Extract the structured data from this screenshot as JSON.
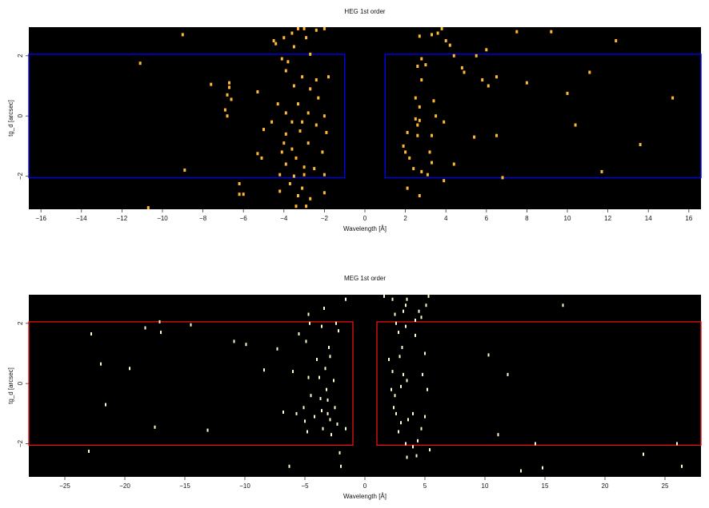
{
  "chart_data": [
    {
      "type": "scatter",
      "title": "HEG 1st order",
      "xlabel": "Wavelength [Å]",
      "ylabel": "tg_d [arcsec]",
      "xlim": [
        -16.6,
        16.6
      ],
      "ylim": [
        -3.1,
        2.95
      ],
      "xticks": [
        -16,
        -14,
        -12,
        -10,
        -8,
        -6,
        -4,
        -2,
        0,
        2,
        4,
        6,
        8,
        10,
        12,
        14,
        16
      ],
      "yticks": [
        -2,
        0,
        2
      ],
      "background": "#000000",
      "point_color": "#ffb833",
      "region_color": "#0000ff",
      "grid": false,
      "regions": [
        {
          "x": [
            -16.6,
            -1.0
          ],
          "y": [
            -2.05,
            2.05
          ]
        },
        {
          "x": [
            1.0,
            16.6
          ],
          "y": [
            -2.05,
            2.05
          ]
        }
      ],
      "points": [
        [
          -9.0,
          2.7
        ],
        [
          -11.1,
          1.75
        ],
        [
          -7.6,
          1.05
        ],
        [
          -6.7,
          1.1
        ],
        [
          -6.7,
          0.95
        ],
        [
          -6.8,
          0.7
        ],
        [
          -6.6,
          0.55
        ],
        [
          -5.3,
          0.8
        ],
        [
          -6.8,
          0.0
        ],
        [
          -6.9,
          0.2
        ],
        [
          -5.3,
          -1.25
        ],
        [
          -5.1,
          -1.4
        ],
        [
          -8.9,
          -1.8
        ],
        [
          -6.2,
          -2.25
        ],
        [
          -6.2,
          -2.6
        ],
        [
          -6.0,
          -2.6
        ],
        [
          -10.7,
          -3.05
        ],
        [
          -4.5,
          2.5
        ],
        [
          -4.4,
          2.4
        ],
        [
          -4.0,
          2.6
        ],
        [
          -3.6,
          2.75
        ],
        [
          -3.3,
          2.9
        ],
        [
          -3.0,
          2.9
        ],
        [
          -2.9,
          2.6
        ],
        [
          -2.4,
          2.85
        ],
        [
          -2.0,
          2.9
        ],
        [
          -3.5,
          2.3
        ],
        [
          -3.8,
          1.8
        ],
        [
          -4.1,
          1.9
        ],
        [
          -2.7,
          2.05
        ],
        [
          -3.9,
          1.5
        ],
        [
          -3.1,
          1.3
        ],
        [
          -2.4,
          1.2
        ],
        [
          -1.8,
          1.3
        ],
        [
          -3.5,
          1.0
        ],
        [
          -2.7,
          0.9
        ],
        [
          -2.3,
          0.6
        ],
        [
          -4.3,
          0.4
        ],
        [
          -3.3,
          0.4
        ],
        [
          -3.9,
          0.1
        ],
        [
          -2.8,
          0.1
        ],
        [
          -2.0,
          0.0
        ],
        [
          -4.6,
          -0.2
        ],
        [
          -3.6,
          -0.2
        ],
        [
          -3.1,
          -0.2
        ],
        [
          -2.4,
          -0.3
        ],
        [
          -5.0,
          -0.45
        ],
        [
          -3.9,
          -0.6
        ],
        [
          -3.2,
          -0.5
        ],
        [
          -1.9,
          -0.55
        ],
        [
          -4.0,
          -0.9
        ],
        [
          -3.6,
          -1.1
        ],
        [
          -2.8,
          -0.9
        ],
        [
          -2.1,
          -1.2
        ],
        [
          -4.1,
          -1.2
        ],
        [
          -3.4,
          -1.4
        ],
        [
          -3.9,
          -1.6
        ],
        [
          -3.0,
          -1.7
        ],
        [
          -2.5,
          -1.75
        ],
        [
          -4.2,
          -1.95
        ],
        [
          -3.5,
          -2.0
        ],
        [
          -3.0,
          -1.95
        ],
        [
          -2.0,
          -1.95
        ],
        [
          -3.7,
          -2.25
        ],
        [
          -3.1,
          -2.4
        ],
        [
          -4.2,
          -2.5
        ],
        [
          -3.3,
          -2.65
        ],
        [
          -2.7,
          -2.75
        ],
        [
          -2.0,
          -2.55
        ],
        [
          -3.4,
          -3.0
        ],
        [
          -2.9,
          -3.0
        ],
        [
          2.7,
          2.65
        ],
        [
          3.3,
          2.7
        ],
        [
          3.6,
          2.75
        ],
        [
          3.8,
          2.9
        ],
        [
          4.0,
          2.5
        ],
        [
          4.2,
          2.35
        ],
        [
          4.4,
          2.0
        ],
        [
          5.5,
          2.0
        ],
        [
          6.0,
          2.2
        ],
        [
          7.5,
          2.8
        ],
        [
          9.2,
          2.8
        ],
        [
          12.4,
          2.5
        ],
        [
          2.8,
          1.9
        ],
        [
          2.6,
          1.65
        ],
        [
          3.0,
          1.7
        ],
        [
          4.8,
          1.6
        ],
        [
          4.9,
          1.45
        ],
        [
          5.8,
          1.2
        ],
        [
          6.1,
          1.0
        ],
        [
          6.5,
          1.3
        ],
        [
          8.0,
          1.1
        ],
        [
          11.1,
          1.45
        ],
        [
          2.8,
          1.2
        ],
        [
          2.5,
          0.6
        ],
        [
          2.7,
          0.3
        ],
        [
          3.4,
          0.5
        ],
        [
          10.0,
          0.75
        ],
        [
          15.2,
          0.6
        ],
        [
          2.5,
          -0.1
        ],
        [
          3.5,
          0.0
        ],
        [
          2.7,
          -0.15
        ],
        [
          2.6,
          -0.3
        ],
        [
          3.9,
          -0.2
        ],
        [
          2.1,
          -0.55
        ],
        [
          2.6,
          -0.65
        ],
        [
          3.3,
          -0.65
        ],
        [
          6.5,
          -0.65
        ],
        [
          5.4,
          -0.7
        ],
        [
          10.4,
          -0.3
        ],
        [
          13.6,
          -0.95
        ],
        [
          1.9,
          -1.0
        ],
        [
          2.0,
          -1.2
        ],
        [
          3.2,
          -1.2
        ],
        [
          2.2,
          -1.4
        ],
        [
          3.3,
          -1.55
        ],
        [
          4.4,
          -1.6
        ],
        [
          2.4,
          -1.75
        ],
        [
          2.8,
          -1.85
        ],
        [
          3.1,
          -1.95
        ],
        [
          6.8,
          -2.05
        ],
        [
          11.7,
          -1.85
        ],
        [
          3.9,
          -2.15
        ],
        [
          2.1,
          -2.4
        ],
        [
          2.7,
          -2.65
        ]
      ]
    },
    {
      "type": "scatter",
      "title": "MEG 1st order",
      "xlabel": "Wavelength [Å]",
      "ylabel": "tg_d [arcsec]",
      "xlim": [
        -28,
        28
      ],
      "ylim": [
        -3.1,
        2.95
      ],
      "xticks": [
        -25,
        -20,
        -15,
        -10,
        -5,
        0,
        5,
        10,
        15,
        20,
        25
      ],
      "yticks": [
        -2,
        0,
        2
      ],
      "background": "#000000",
      "point_color": "#fffccc",
      "region_color": "#ee1111",
      "grid": false,
      "regions": [
        {
          "x": [
            -28,
            -1.0
          ],
          "y": [
            -2.05,
            2.05
          ]
        },
        {
          "x": [
            1.0,
            28
          ],
          "y": [
            -2.05,
            2.05
          ]
        }
      ],
      "points": [
        [
          -23.0,
          -2.25
        ],
        [
          -22.8,
          1.65
        ],
        [
          -22.0,
          0.65
        ],
        [
          -21.6,
          -0.7
        ],
        [
          -19.6,
          0.5
        ],
        [
          -18.3,
          1.85
        ],
        [
          -17.1,
          2.05
        ],
        [
          -17.0,
          1.7
        ],
        [
          -17.5,
          -1.45
        ],
        [
          -14.5,
          1.95
        ],
        [
          -13.1,
          -1.55
        ],
        [
          -10.9,
          1.4
        ],
        [
          -9.9,
          1.3
        ],
        [
          -8.4,
          0.45
        ],
        [
          -7.3,
          1.15
        ],
        [
          -6.8,
          -0.95
        ],
        [
          -6.3,
          -2.75
        ],
        [
          -6.0,
          0.4
        ],
        [
          -5.7,
          -1.0
        ],
        [
          -5.5,
          1.65
        ],
        [
          -5.1,
          -0.8
        ],
        [
          -5.0,
          -1.25
        ],
        [
          -4.9,
          1.4
        ],
        [
          -4.8,
          -1.6
        ],
        [
          -4.7,
          2.3
        ],
        [
          -4.6,
          2.0
        ],
        [
          -4.7,
          0.2
        ],
        [
          -4.5,
          -0.4
        ],
        [
          -4.2,
          -1.1
        ],
        [
          -4.0,
          0.8
        ],
        [
          -3.8,
          0.2
        ],
        [
          -3.7,
          -0.5
        ],
        [
          -3.6,
          -0.9
        ],
        [
          -3.6,
          1.9
        ],
        [
          -3.5,
          -1.5
        ],
        [
          -3.4,
          2.5
        ],
        [
          -3.3,
          0.5
        ],
        [
          -3.2,
          -0.2
        ],
        [
          -3.1,
          -0.55
        ],
        [
          -3.1,
          -1.0
        ],
        [
          -3.0,
          1.2
        ],
        [
          -2.9,
          0.9
        ],
        [
          -2.9,
          -1.2
        ],
        [
          -2.8,
          -1.7
        ],
        [
          -2.6,
          0.1
        ],
        [
          -2.5,
          -0.8
        ],
        [
          -2.4,
          2.0
        ],
        [
          -2.3,
          -1.35
        ],
        [
          -2.2,
          1.75
        ],
        [
          -2.1,
          -2.3
        ],
        [
          -2.0,
          -2.75
        ],
        [
          -1.6,
          2.8
        ],
        [
          -1.6,
          -1.5
        ],
        [
          1.6,
          2.9
        ],
        [
          2.3,
          2.8
        ],
        [
          2.5,
          2.3
        ],
        [
          2.6,
          2.0
        ],
        [
          2.8,
          1.7
        ],
        [
          3.2,
          2.4
        ],
        [
          3.4,
          2.6
        ],
        [
          3.5,
          2.8
        ],
        [
          3.4,
          1.9
        ],
        [
          3.1,
          1.2
        ],
        [
          2.9,
          0.9
        ],
        [
          2.0,
          0.8
        ],
        [
          2.3,
          0.4
        ],
        [
          3.2,
          0.3
        ],
        [
          2.2,
          -0.2
        ],
        [
          2.5,
          -0.4
        ],
        [
          3.0,
          -0.1
        ],
        [
          3.5,
          0.1
        ],
        [
          2.4,
          -0.8
        ],
        [
          2.6,
          -1.0
        ],
        [
          3.0,
          -1.3
        ],
        [
          2.8,
          -1.6
        ],
        [
          3.6,
          -1.2
        ],
        [
          4.0,
          -1.0
        ],
        [
          4.2,
          1.6
        ],
        [
          4.2,
          2.1
        ],
        [
          4.5,
          2.4
        ],
        [
          4.7,
          2.2
        ],
        [
          5.1,
          2.6
        ],
        [
          5.3,
          2.9
        ],
        [
          5.0,
          1.0
        ],
        [
          4.8,
          0.3
        ],
        [
          5.2,
          -0.2
        ],
        [
          5.0,
          -1.1
        ],
        [
          4.7,
          -1.5
        ],
        [
          3.4,
          -2.0
        ],
        [
          4.0,
          -2.1
        ],
        [
          4.4,
          -1.9
        ],
        [
          4.3,
          -2.4
        ],
        [
          3.5,
          -2.45
        ],
        [
          5.4,
          -2.2
        ],
        [
          10.3,
          0.95
        ],
        [
          11.9,
          0.3
        ],
        [
          11.1,
          -1.7
        ],
        [
          13.0,
          -2.9
        ],
        [
          14.2,
          -2.0
        ],
        [
          14.8,
          -2.8
        ],
        [
          16.5,
          2.6
        ],
        [
          23.2,
          -2.35
        ],
        [
          26.0,
          -2.0
        ],
        [
          26.4,
          -2.75
        ]
      ]
    }
  ]
}
